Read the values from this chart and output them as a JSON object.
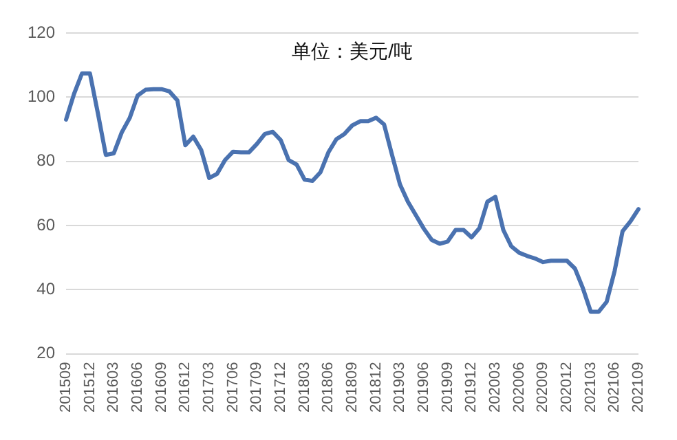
{
  "chart_data": {
    "type": "line",
    "title": "单位：美元/吨",
    "categories": [
      "201509",
      null,
      null,
      "201512",
      null,
      null,
      "201603",
      null,
      null,
      "201606",
      null,
      null,
      "201609",
      null,
      null,
      "201612",
      null,
      null,
      "201703",
      null,
      null,
      "201706",
      null,
      null,
      "201709",
      null,
      null,
      "201712",
      null,
      null,
      "201803",
      null,
      null,
      "201806",
      null,
      null,
      "201809",
      null,
      null,
      "201812",
      null,
      null,
      "201903",
      null,
      null,
      "201906",
      null,
      null,
      "201909",
      null,
      null,
      "201912",
      null,
      null,
      "202003",
      null,
      null,
      "202006",
      null,
      null,
      "202009",
      null,
      null,
      "202012",
      null,
      null,
      "202103",
      null,
      null,
      "202106",
      null,
      null,
      "202109"
    ],
    "values": [
      93,
      101,
      107.4,
      107.4,
      95,
      82,
      82.5,
      89,
      93.5,
      100.5,
      102.3,
      102.5,
      102.5,
      101.8,
      99,
      85,
      87.7,
      83.5,
      74.8,
      76.1,
      80.4,
      83,
      82.8,
      82.8,
      85.4,
      88.5,
      89.2,
      86.6,
      80.4,
      79,
      74.3,
      73.9,
      76.6,
      82.8,
      86.9,
      88.5,
      91.2,
      92.5,
      92.5,
      93.6,
      91.5,
      82,
      72.8,
      67.4,
      63.2,
      59,
      55.5,
      54.3,
      55,
      58.6,
      58.6,
      56.3,
      59.2,
      67.4,
      68.9,
      58.6,
      53.5,
      51.5,
      50.5,
      49.7,
      48.6,
      49,
      49,
      49,
      46.6,
      40.5,
      33.1,
      33.1,
      36.2,
      45.8,
      58.2,
      61.3,
      65.1
    ],
    "color": "#4a72b0",
    "ylim": [
      20,
      120
    ],
    "yticks": [
      20,
      40,
      60,
      80,
      100,
      120
    ],
    "grid": "y"
  }
}
